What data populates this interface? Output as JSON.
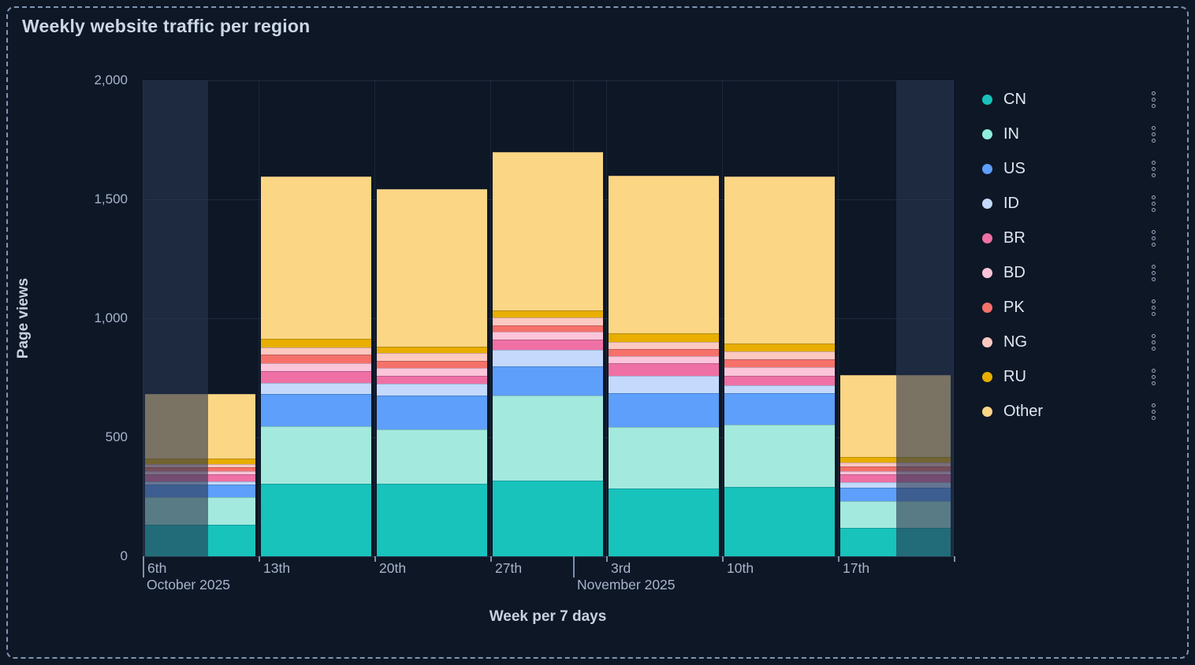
{
  "panel": {
    "title": "Weekly website traffic per region"
  },
  "y_axis": {
    "label": "Page views",
    "tick_labels": [
      "0",
      "500",
      "1,000",
      "1,500",
      "2,000"
    ]
  },
  "x_axis": {
    "label": "Week per 7 days",
    "tick_labels": [
      "6th",
      "13th",
      "20th",
      "27th",
      "3rd",
      "10th",
      "17th"
    ],
    "months": [
      "October 2025",
      "November 2025"
    ]
  },
  "legend": {
    "items": [
      {
        "label": "CN",
        "color": "#17c3bb"
      },
      {
        "label": "IN",
        "color": "#90ecdc"
      },
      {
        "label": "US",
        "color": "#5d9ffa"
      },
      {
        "label": "ID",
        "color": "#c4d9fb"
      },
      {
        "label": "BR",
        "color": "#ef70a5"
      },
      {
        "label": "BD",
        "color": "#fcc5d9"
      },
      {
        "label": "PK",
        "color": "#f5716a"
      },
      {
        "label": "NG",
        "color": "#fcc9c0"
      },
      {
        "label": "RU",
        "color": "#e8ae00"
      },
      {
        "label": "Other",
        "color": "#fbd685"
      }
    ],
    "menu_icon": "kebab-dots"
  },
  "chart_data": {
    "type": "bar",
    "stacked": true,
    "title": "Weekly website traffic per region",
    "xlabel": "Week per 7 days",
    "ylabel": "Page views",
    "ylim": [
      0,
      2000
    ],
    "yticks": [
      0,
      500,
      1000,
      1500,
      2000
    ],
    "grid": true,
    "legend_position": "right",
    "categories": [
      "6th",
      "13th",
      "20th",
      "27th",
      "3rd",
      "10th",
      "17th"
    ],
    "category_months": {
      "6th": "October 2025",
      "3rd": "November 2025"
    },
    "series": [
      {
        "name": "CN",
        "color": "#17c3bb",
        "values": [
          134,
          305,
          305,
          318,
          285,
          292,
          120
        ]
      },
      {
        "name": "IN",
        "color": "#a3e9de",
        "values": [
          116,
          242,
          229,
          359,
          259,
          261,
          113
        ]
      },
      {
        "name": "US",
        "color": "#5d9ffa",
        "values": [
          52,
          136,
          140,
          120,
          143,
          132,
          55
        ]
      },
      {
        "name": "ID",
        "color": "#c4d9fb",
        "values": [
          12,
          45,
          50,
          71,
          70,
          33,
          24
        ]
      },
      {
        "name": "BR",
        "color": "#ef70a5",
        "values": [
          30,
          50,
          33,
          44,
          53,
          41,
          34
        ]
      },
      {
        "name": "BD",
        "color": "#fcc5d9",
        "values": [
          15,
          35,
          33,
          33,
          31,
          36,
          11
        ]
      },
      {
        "name": "PK",
        "color": "#f5716a",
        "values": [
          17,
          36,
          31,
          25,
          30,
          33,
          21
        ]
      },
      {
        "name": "NG",
        "color": "#fcc9c0",
        "values": [
          13,
          29,
          35,
          33,
          30,
          33,
          17
        ]
      },
      {
        "name": "RU",
        "color": "#e8ae00",
        "values": [
          22,
          36,
          24,
          30,
          36,
          33,
          24
        ]
      },
      {
        "name": "Other",
        "color": "#fbd685",
        "values": [
          273,
          683,
          664,
          666,
          664,
          703,
          343
        ]
      }
    ],
    "partial_weeks_faded": [
      "6th",
      "17th"
    ]
  }
}
